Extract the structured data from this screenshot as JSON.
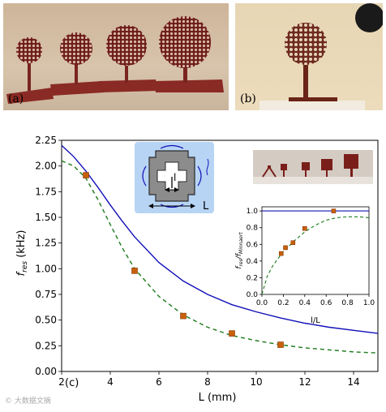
{
  "panels": {
    "a_label": "(a)",
    "b_label": "(b)",
    "c_label": "(c)"
  },
  "colors": {
    "model": "#1010b8",
    "fit": "#1a7a1a",
    "marker": "#c8600a",
    "inset_bg": "#b8d4f4"
  },
  "main_chart": {
    "xlabel": "L (mm)",
    "ylabel_main": "f",
    "ylabel_sub": "res",
    "ylabel_unit": " (kHz)",
    "xlim": [
      2,
      15
    ],
    "ylim": [
      0,
      2.25
    ],
    "xticks": [
      "2",
      "4",
      "6",
      "8",
      "10",
      "12",
      "14"
    ],
    "yticks": [
      "0.00",
      "0.25",
      "0.50",
      "0.75",
      "1.00",
      "1.25",
      "1.50",
      "1.75",
      "2.00",
      "2.25"
    ]
  },
  "schematic": {
    "small_label": "l",
    "large_label": "L"
  },
  "inset_chart": {
    "xlabel": "l/L",
    "ylabel_main": "f",
    "ylabel_sub": "res",
    "ylabel_mid": "/f",
    "ylabel_sub2": "Minnaert",
    "xticks": [
      "0.0",
      "0.2",
      "0.4",
      "0.6",
      "0.8",
      "1.0"
    ],
    "yticks": [
      "0.0",
      "0.2",
      "0.4",
      "0.6",
      "0.8",
      "1.0"
    ]
  },
  "watermark": "© 大数据文摘",
  "chart_data": [
    {
      "type": "scatter",
      "xlabel": "L (mm)",
      "ylabel": "f_res (kHz)",
      "xlim": [
        2,
        15
      ],
      "ylim": [
        0,
        2.25
      ],
      "grid": false,
      "series": [
        {
          "style": "solid-line",
          "color": "#1010b8",
          "x": [
            2,
            2.5,
            3,
            3.5,
            4,
            4.5,
            5,
            6,
            7,
            8,
            9,
            10,
            11,
            12,
            13,
            14,
            15
          ],
          "y": [
            2.2,
            2.09,
            1.95,
            1.79,
            1.62,
            1.46,
            1.31,
            1.06,
            0.88,
            0.75,
            0.65,
            0.58,
            0.52,
            0.47,
            0.43,
            0.4,
            0.37
          ]
        },
        {
          "style": "dashed-line",
          "color": "#1a7a1a",
          "x": [
            2,
            2.5,
            3,
            3.5,
            4,
            4.5,
            5,
            6,
            7,
            8,
            9,
            10,
            11,
            12,
            13,
            14,
            15
          ],
          "y": [
            2.05,
            2.0,
            1.88,
            1.67,
            1.43,
            1.2,
            1.0,
            0.73,
            0.55,
            0.43,
            0.35,
            0.3,
            0.26,
            0.23,
            0.21,
            0.19,
            0.18
          ]
        },
        {
          "style": "square-markers",
          "color": "#c8600a",
          "x": [
            3,
            5,
            7,
            9,
            11
          ],
          "y": [
            1.91,
            0.98,
            0.54,
            0.37,
            0.26
          ]
        }
      ]
    },
    {
      "type": "scatter",
      "xlabel": "l/L",
      "ylabel": "f_res/f_Minnaert",
      "xlim": [
        0,
        1
      ],
      "ylim": [
        0,
        1.05
      ],
      "grid": false,
      "series": [
        {
          "style": "solid-line",
          "color": "#1010b8",
          "x": [
            0,
            1
          ],
          "y": [
            1.0,
            1.0
          ]
        },
        {
          "style": "dashed-line",
          "color": "#1a7a1a",
          "x": [
            0,
            0.05,
            0.1,
            0.15,
            0.2,
            0.3,
            0.4,
            0.5,
            0.6,
            0.7,
            0.8,
            0.9,
            1.0
          ],
          "y": [
            0.0,
            0.22,
            0.34,
            0.43,
            0.51,
            0.64,
            0.75,
            0.83,
            0.89,
            0.92,
            0.93,
            0.93,
            0.92
          ]
        },
        {
          "style": "square-markers",
          "color": "#c8600a",
          "x": [
            0.18,
            0.22,
            0.29,
            0.4,
            0.67
          ],
          "y": [
            0.49,
            0.56,
            0.62,
            0.79,
            1.0
          ]
        }
      ]
    }
  ]
}
